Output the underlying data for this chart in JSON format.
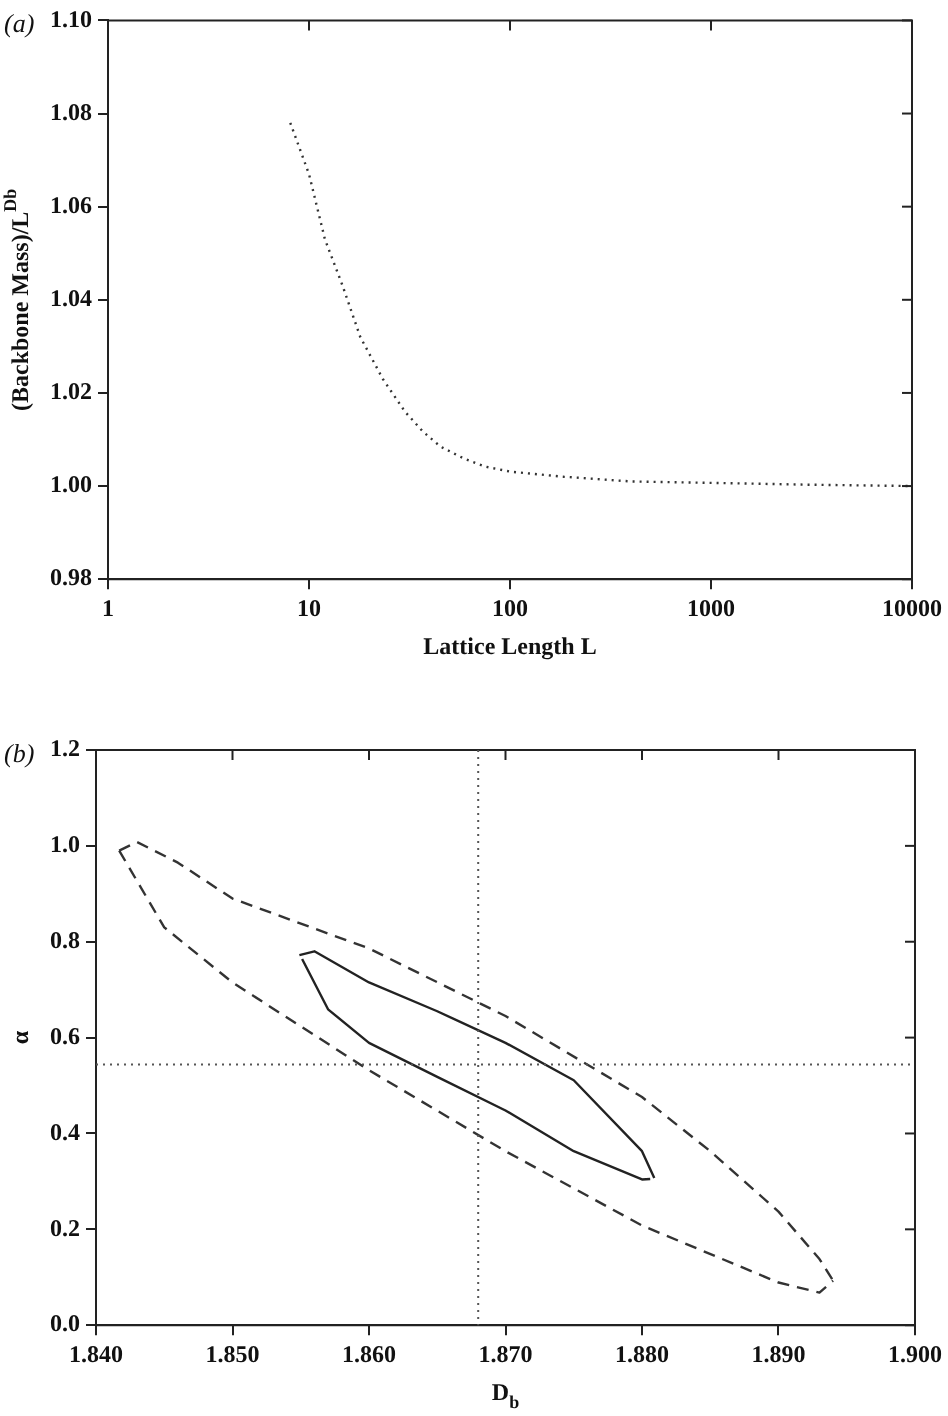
{
  "chart_data": [
    {
      "type": "line",
      "xlabel": "Lattice Length L",
      "ylabel": "(Backbone Mass)/L$^{Db}$",
      "annotations": [
        "(a)"
      ],
      "log": "x",
      "xlim": [
        1,
        10000
      ],
      "xticks": [
        1,
        10,
        100,
        1000,
        10000
      ],
      "ylim": [
        0.98,
        1.1
      ],
      "yticks": [
        {
          "value": 0.98,
          "label": "0.98"
        },
        {
          "value": 1.0,
          "label": "1.00"
        },
        {
          "value": 1.02,
          "label": "1.02"
        },
        {
          "value": 1.04,
          "label": "1.04"
        },
        {
          "value": 1.06,
          "label": "1.06"
        },
        {
          "value": 1.08,
          "label": "1.08"
        },
        {
          "value": 1.1,
          "label": "1.10"
        }
      ],
      "grid": false,
      "marker": "none",
      "series": [
        {
          "color": "#333333",
          "line_style": "dotted",
          "x": [
            8.07,
            10,
            12,
            14.7,
            18,
            23.3,
            30,
            36.9,
            45,
            58.4,
            75,
            100,
            185,
            398,
            1278,
            3000,
            10000
          ],
          "values": [
            1.078,
            1.067,
            1.053,
            1.043,
            1.032,
            1.023,
            1.016,
            1.0117,
            1.0085,
            1.006,
            1.0042,
            1.0031,
            1.002,
            1.001,
            1.0006,
            1.0003,
            1.0
          ]
        }
      ]
    },
    {
      "type": "line",
      "xlabel": "D$_{b}$",
      "ylabel": "α",
      "annotations": [
        "(b)"
      ],
      "xlim": [
        1.84,
        1.9
      ],
      "xticks": [
        {
          "value": 1.84,
          "label": "1.840"
        },
        {
          "value": 1.85,
          "label": "1.850"
        },
        {
          "value": 1.86,
          "label": "1.860"
        },
        {
          "value": 1.87,
          "label": "1.870"
        },
        {
          "value": 1.88,
          "label": "1.880"
        },
        {
          "value": 1.89,
          "label": "1.890"
        },
        {
          "value": 1.9,
          "label": "1.900"
        }
      ],
      "ylim": [
        0,
        1.2
      ],
      "yticks": [
        {
          "value": 0,
          "label": "0.0"
        },
        {
          "value": 0.2,
          "label": "0.2"
        },
        {
          "value": 0.4,
          "label": "0.4"
        },
        {
          "value": 0.6,
          "label": "0.6"
        },
        {
          "value": 0.8,
          "label": "0.8"
        },
        {
          "value": 1.0,
          "label": "1.0"
        },
        {
          "value": 1.2,
          "label": "1.2"
        }
      ],
      "grid": false,
      "marker": "none",
      "ref_lines": [
        {
          "axis": "x",
          "value": 1.868,
          "line_style": "dotted",
          "color": "#555555"
        },
        {
          "axis": "y",
          "value": 0.544,
          "line_style": "dotted",
          "color": "#555555"
        }
      ],
      "series": [
        {
          "color": "#333333",
          "line_style": "dashed",
          "x": [
            1.8417,
            1.843,
            1.846,
            1.85,
            1.86,
            1.87,
            1.88,
            1.885,
            1.89,
            1.893,
            1.894
          ],
          "values": [
            0.99,
            1.008,
            0.965,
            0.89,
            0.786,
            0.645,
            0.476,
            0.363,
            0.237,
            0.138,
            0.093
          ]
        },
        {
          "color": "#333333",
          "line_style": "dashed",
          "x": [
            1.8417,
            1.845,
            1.85,
            1.86,
            1.87,
            1.88,
            1.89,
            1.893,
            1.894
          ],
          "values": [
            0.99,
            0.83,
            0.715,
            0.532,
            0.363,
            0.208,
            0.089,
            0.068,
            0.093
          ]
        },
        {
          "color": "#222222",
          "line_style": "solid",
          "x": [
            1.8549,
            1.856,
            1.86,
            1.865,
            1.87,
            1.875,
            1.88,
            1.8809
          ],
          "values": [
            0.772,
            0.78,
            0.715,
            0.655,
            0.589,
            0.511,
            0.363,
            0.307
          ]
        },
        {
          "color": "#222222",
          "line_style": "solid",
          "x": [
            1.8551,
            1.857,
            1.86,
            1.865,
            1.87,
            1.875,
            1.88,
            1.8806
          ],
          "values": [
            0.764,
            0.659,
            0.589,
            0.518,
            0.448,
            0.363,
            0.304,
            0.305
          ]
        }
      ]
    }
  ]
}
